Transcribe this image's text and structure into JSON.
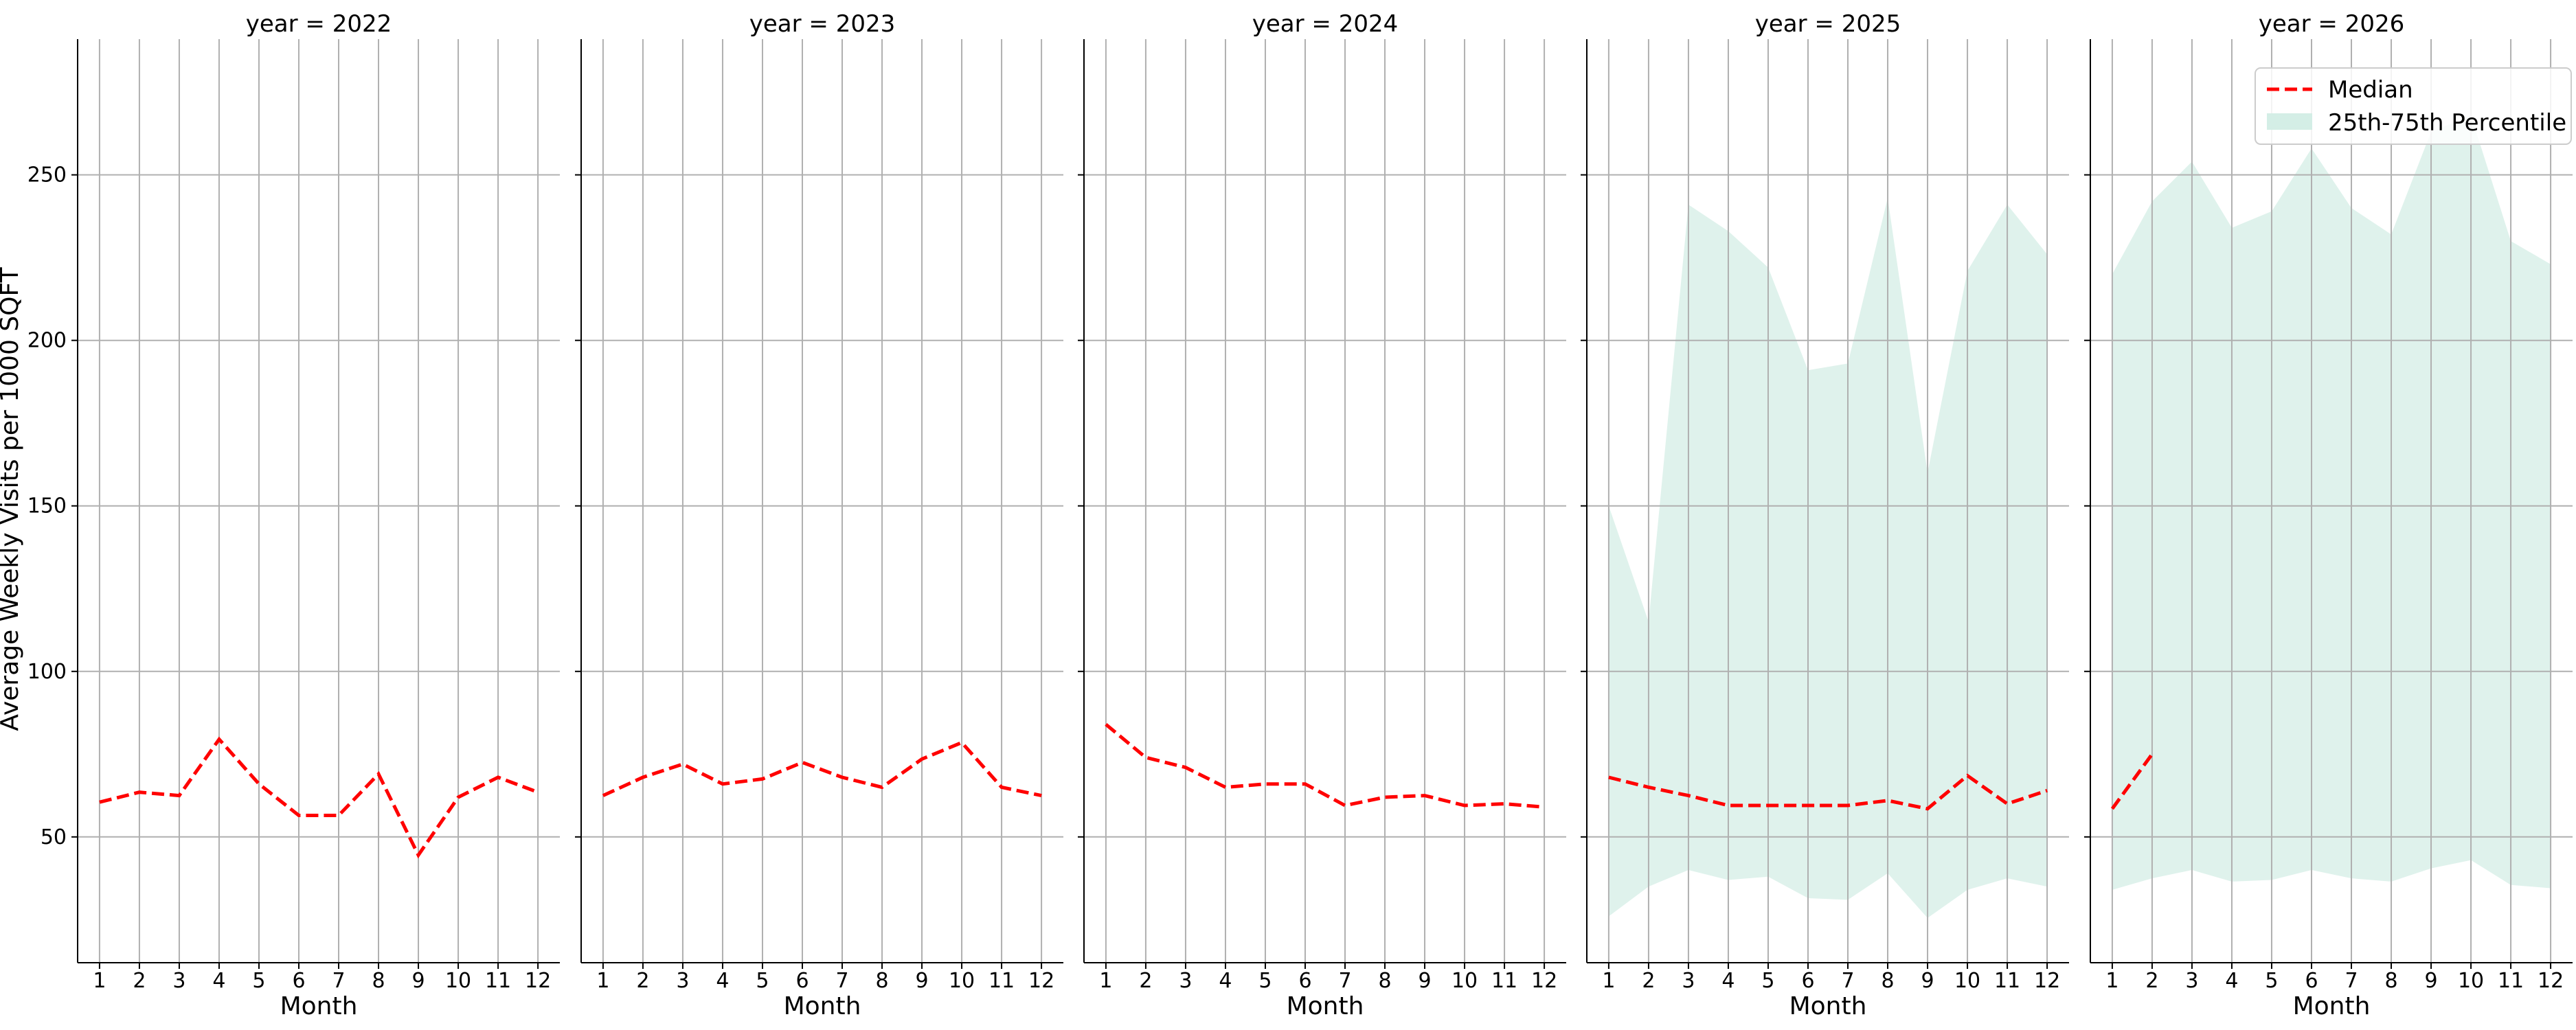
{
  "chart_data": {
    "type": "line",
    "ylabel": "Average Weekly Visits per 1000 SQFT",
    "xlabel": "Month",
    "ylim": [
      12,
      291
    ],
    "xlim": [
      0.45,
      12.55
    ],
    "yticks": [
      50,
      100,
      150,
      200,
      250
    ],
    "xticks": [
      1,
      2,
      3,
      4,
      5,
      6,
      7,
      8,
      9,
      10,
      11,
      12
    ],
    "grid": true,
    "legend": {
      "placement": "top-right",
      "entries": [
        "Median",
        "25th-75th Percentile"
      ]
    },
    "colors": {
      "median": "#ff0000",
      "band": "#d4eee6",
      "grid": "#b0b0b0",
      "axis": "#000000"
    },
    "panels": [
      {
        "title": "year = 2022",
        "median": [
          [
            1,
            60.5
          ],
          [
            2,
            63.5
          ],
          [
            3,
            62.5
          ],
          [
            4,
            79.5
          ],
          [
            5,
            66
          ],
          [
            6,
            56.5
          ],
          [
            7,
            56.5
          ],
          [
            8,
            69
          ],
          [
            9,
            44.5
          ],
          [
            10,
            62
          ],
          [
            11,
            68
          ],
          [
            12,
            63.5
          ]
        ],
        "band": []
      },
      {
        "title": "year = 2023",
        "median": [
          [
            1,
            62.5
          ],
          [
            2,
            68
          ],
          [
            3,
            72
          ],
          [
            4,
            66
          ],
          [
            5,
            67.5
          ],
          [
            6,
            72.5
          ],
          [
            7,
            68
          ],
          [
            8,
            65
          ],
          [
            9,
            73.5
          ],
          [
            10,
            78.5
          ],
          [
            11,
            65
          ],
          [
            12,
            62.5
          ]
        ],
        "band": []
      },
      {
        "title": "year = 2024",
        "median": [
          [
            1,
            84
          ],
          [
            2,
            74
          ],
          [
            3,
            71
          ],
          [
            4,
            65
          ],
          [
            5,
            66
          ],
          [
            6,
            66
          ],
          [
            7,
            59.5
          ],
          [
            8,
            62
          ],
          [
            9,
            62.5
          ],
          [
            10,
            59.5
          ],
          [
            11,
            60
          ],
          [
            12,
            59
          ]
        ],
        "band": []
      },
      {
        "title": "year = 2025",
        "median": [
          [
            1,
            68
          ],
          [
            2,
            65
          ],
          [
            3,
            62.5
          ],
          [
            4,
            59.5
          ],
          [
            5,
            59.5
          ],
          [
            6,
            59.5
          ],
          [
            7,
            59.5
          ],
          [
            8,
            61
          ],
          [
            9,
            58.5
          ],
          [
            10,
            68.5
          ],
          [
            11,
            60
          ],
          [
            12,
            64
          ]
        ],
        "band": [
          [
            1,
            26,
            150
          ],
          [
            2,
            35,
            115
          ],
          [
            3,
            40,
            241
          ],
          [
            4,
            37,
            233
          ],
          [
            5,
            38,
            222
          ],
          [
            6,
            31.5,
            191
          ],
          [
            7,
            31,
            193
          ],
          [
            8,
            39,
            243
          ],
          [
            9,
            25.5,
            160
          ],
          [
            10,
            34,
            221
          ],
          [
            11,
            37.5,
            241
          ],
          [
            12,
            35,
            226
          ]
        ]
      },
      {
        "title": "year = 2026",
        "median": [
          [
            1,
            58.5
          ],
          [
            2,
            75
          ]
        ],
        "band": [
          [
            1,
            34,
            220
          ],
          [
            2,
            37.5,
            242
          ],
          [
            3,
            40,
            254
          ],
          [
            4,
            36.5,
            234
          ],
          [
            5,
            37,
            239
          ],
          [
            6,
            40,
            258
          ],
          [
            7,
            37.5,
            240
          ],
          [
            8,
            36.5,
            232
          ],
          [
            9,
            40.5,
            263
          ],
          [
            10,
            43,
            268
          ],
          [
            11,
            35.5,
            230
          ],
          [
            12,
            34.5,
            223
          ]
        ]
      }
    ]
  }
}
